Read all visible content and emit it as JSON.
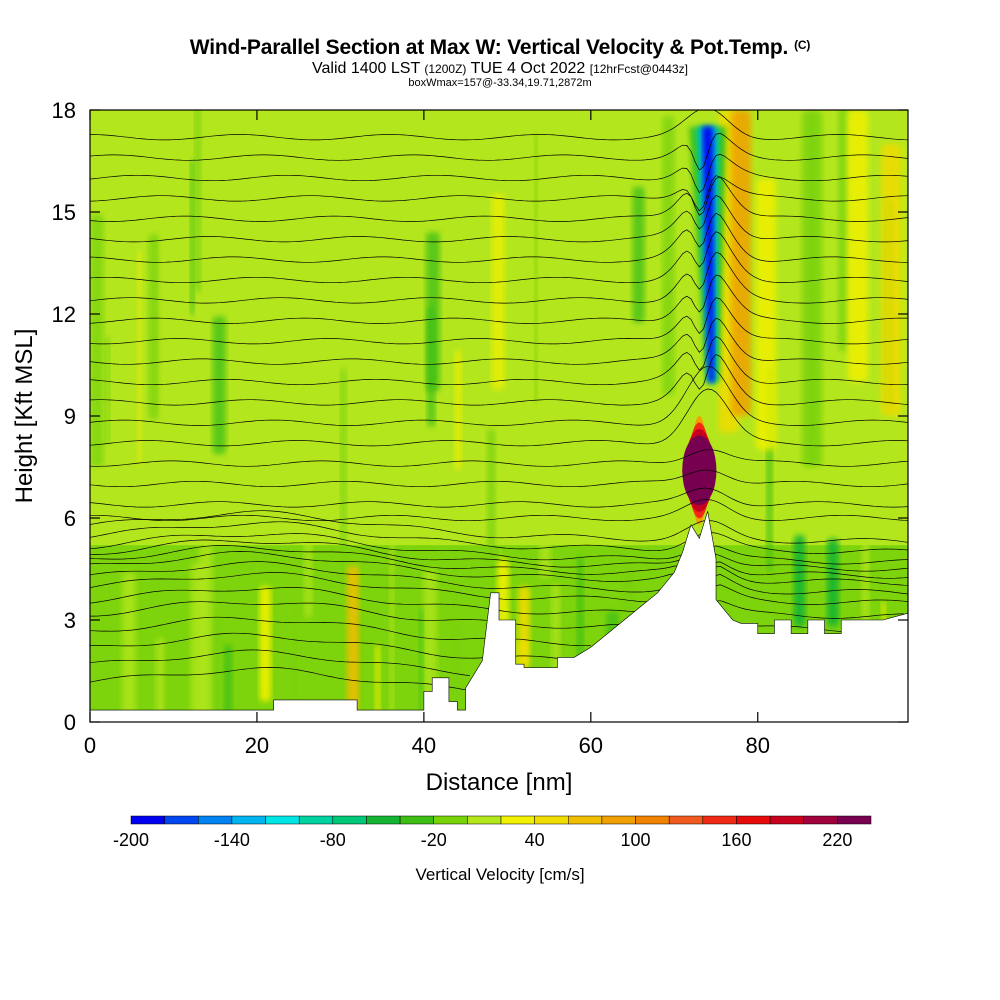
{
  "header": {
    "title": "Wind-Parallel Section at Max W: Vertical Velocity & Pot.Temp.",
    "copyright": "(C)",
    "subtitle_main": "Valid 1400 LST",
    "subtitle_utc": "(1200Z)",
    "subtitle_date": "TUE 4 Oct 2022",
    "subtitle_forecast": "[12hrFcst@0443z]",
    "box_info": "boxWmax=157@-33.34,19.71,2872m"
  },
  "colors": {
    "background_field": "#b4e61e",
    "terrain": "#ffffff",
    "contour": "#000000"
  },
  "chart_data": {
    "type": "heatmap",
    "title": "Wind-Parallel Section at Max W: Vertical Velocity & Pot.Temp.",
    "xlabel": "Distance [nm]",
    "ylabel": "Height [Kft MSL]",
    "xlim": [
      0,
      98
    ],
    "ylim": [
      0,
      18
    ],
    "xticks": [
      0,
      20,
      40,
      60,
      80
    ],
    "yticks": [
      0,
      3,
      6,
      9,
      12,
      15,
      18
    ],
    "colorbar": {
      "title": "Vertical Velocity [cm/s]",
      "tick_labels": [
        "-200",
        "-140",
        "-80",
        "-20",
        "40",
        "100",
        "160",
        "220"
      ],
      "tick_values": [
        -200,
        -140,
        -80,
        -20,
        40,
        100,
        160,
        220
      ],
      "levels": [
        -200,
        -180,
        -160,
        -140,
        -120,
        -100,
        -80,
        -60,
        -40,
        -20,
        0,
        20,
        40,
        60,
        80,
        100,
        120,
        140,
        160,
        180,
        200,
        220,
        240
      ],
      "colors": [
        "#0000f0",
        "#0046f0",
        "#0082f0",
        "#00b4f0",
        "#00e6e6",
        "#00d2a0",
        "#00c878",
        "#14b432",
        "#3cbe14",
        "#78d20a",
        "#b4e61e",
        "#f0f000",
        "#f0dc00",
        "#f0be00",
        "#f0a000",
        "#f08200",
        "#f05a1e",
        "#f02814",
        "#e60a0a",
        "#c8001e",
        "#a0003c",
        "#780050"
      ]
    },
    "terrain_profile": {
      "x": [
        0,
        22,
        22,
        32,
        32,
        40,
        40,
        41,
        41,
        43,
        43,
        44,
        44,
        45,
        45,
        47,
        48,
        49,
        49,
        51,
        51,
        52,
        52,
        56,
        56,
        58,
        60,
        62,
        64,
        66,
        68,
        70,
        71,
        72,
        73,
        74,
        75,
        75,
        76,
        77,
        78,
        80,
        80,
        82,
        82,
        84,
        84,
        86,
        86,
        88,
        88,
        90,
        90,
        95,
        98
      ],
      "height_kft": [
        0.35,
        0.35,
        0.65,
        0.65,
        0.35,
        0.35,
        0.9,
        0.9,
        1.3,
        1.3,
        0.6,
        0.6,
        0.35,
        0.35,
        1.0,
        1.8,
        3.8,
        3.8,
        3.0,
        3.0,
        1.7,
        1.7,
        1.6,
        1.6,
        1.9,
        1.9,
        2.2,
        2.6,
        3.0,
        3.4,
        3.8,
        4.4,
        5.0,
        5.8,
        5.4,
        6.2,
        4.8,
        3.6,
        3.3,
        3.0,
        2.9,
        2.9,
        2.6,
        2.6,
        3.0,
        3.0,
        2.6,
        2.6,
        3.0,
        3.0,
        2.6,
        2.6,
        3.0,
        3.0,
        3.2
      ]
    },
    "updraft_core": {
      "x_nm": 73,
      "height_kft": [
        5.8,
        9.0
      ],
      "w_max_cms": 240
    },
    "downdraft_core": {
      "x_nm": 74,
      "height_kft": [
        10.0,
        17.5
      ],
      "w_min_cms": -180
    },
    "theta_contours_kft": [
      1.0,
      1.5,
      2.0,
      2.5,
      3.0,
      3.4,
      3.8,
      4.1,
      4.4,
      4.6,
      4.8,
      5.0,
      5.3,
      5.6,
      6.0,
      6.4,
      7.0,
      7.6,
      8.2,
      8.8,
      9.4,
      10.0,
      10.6,
      11.2,
      11.8,
      12.4,
      13.0,
      13.6,
      14.2,
      14.8,
      15.4,
      16.0,
      16.6,
      17.2
    ]
  }
}
